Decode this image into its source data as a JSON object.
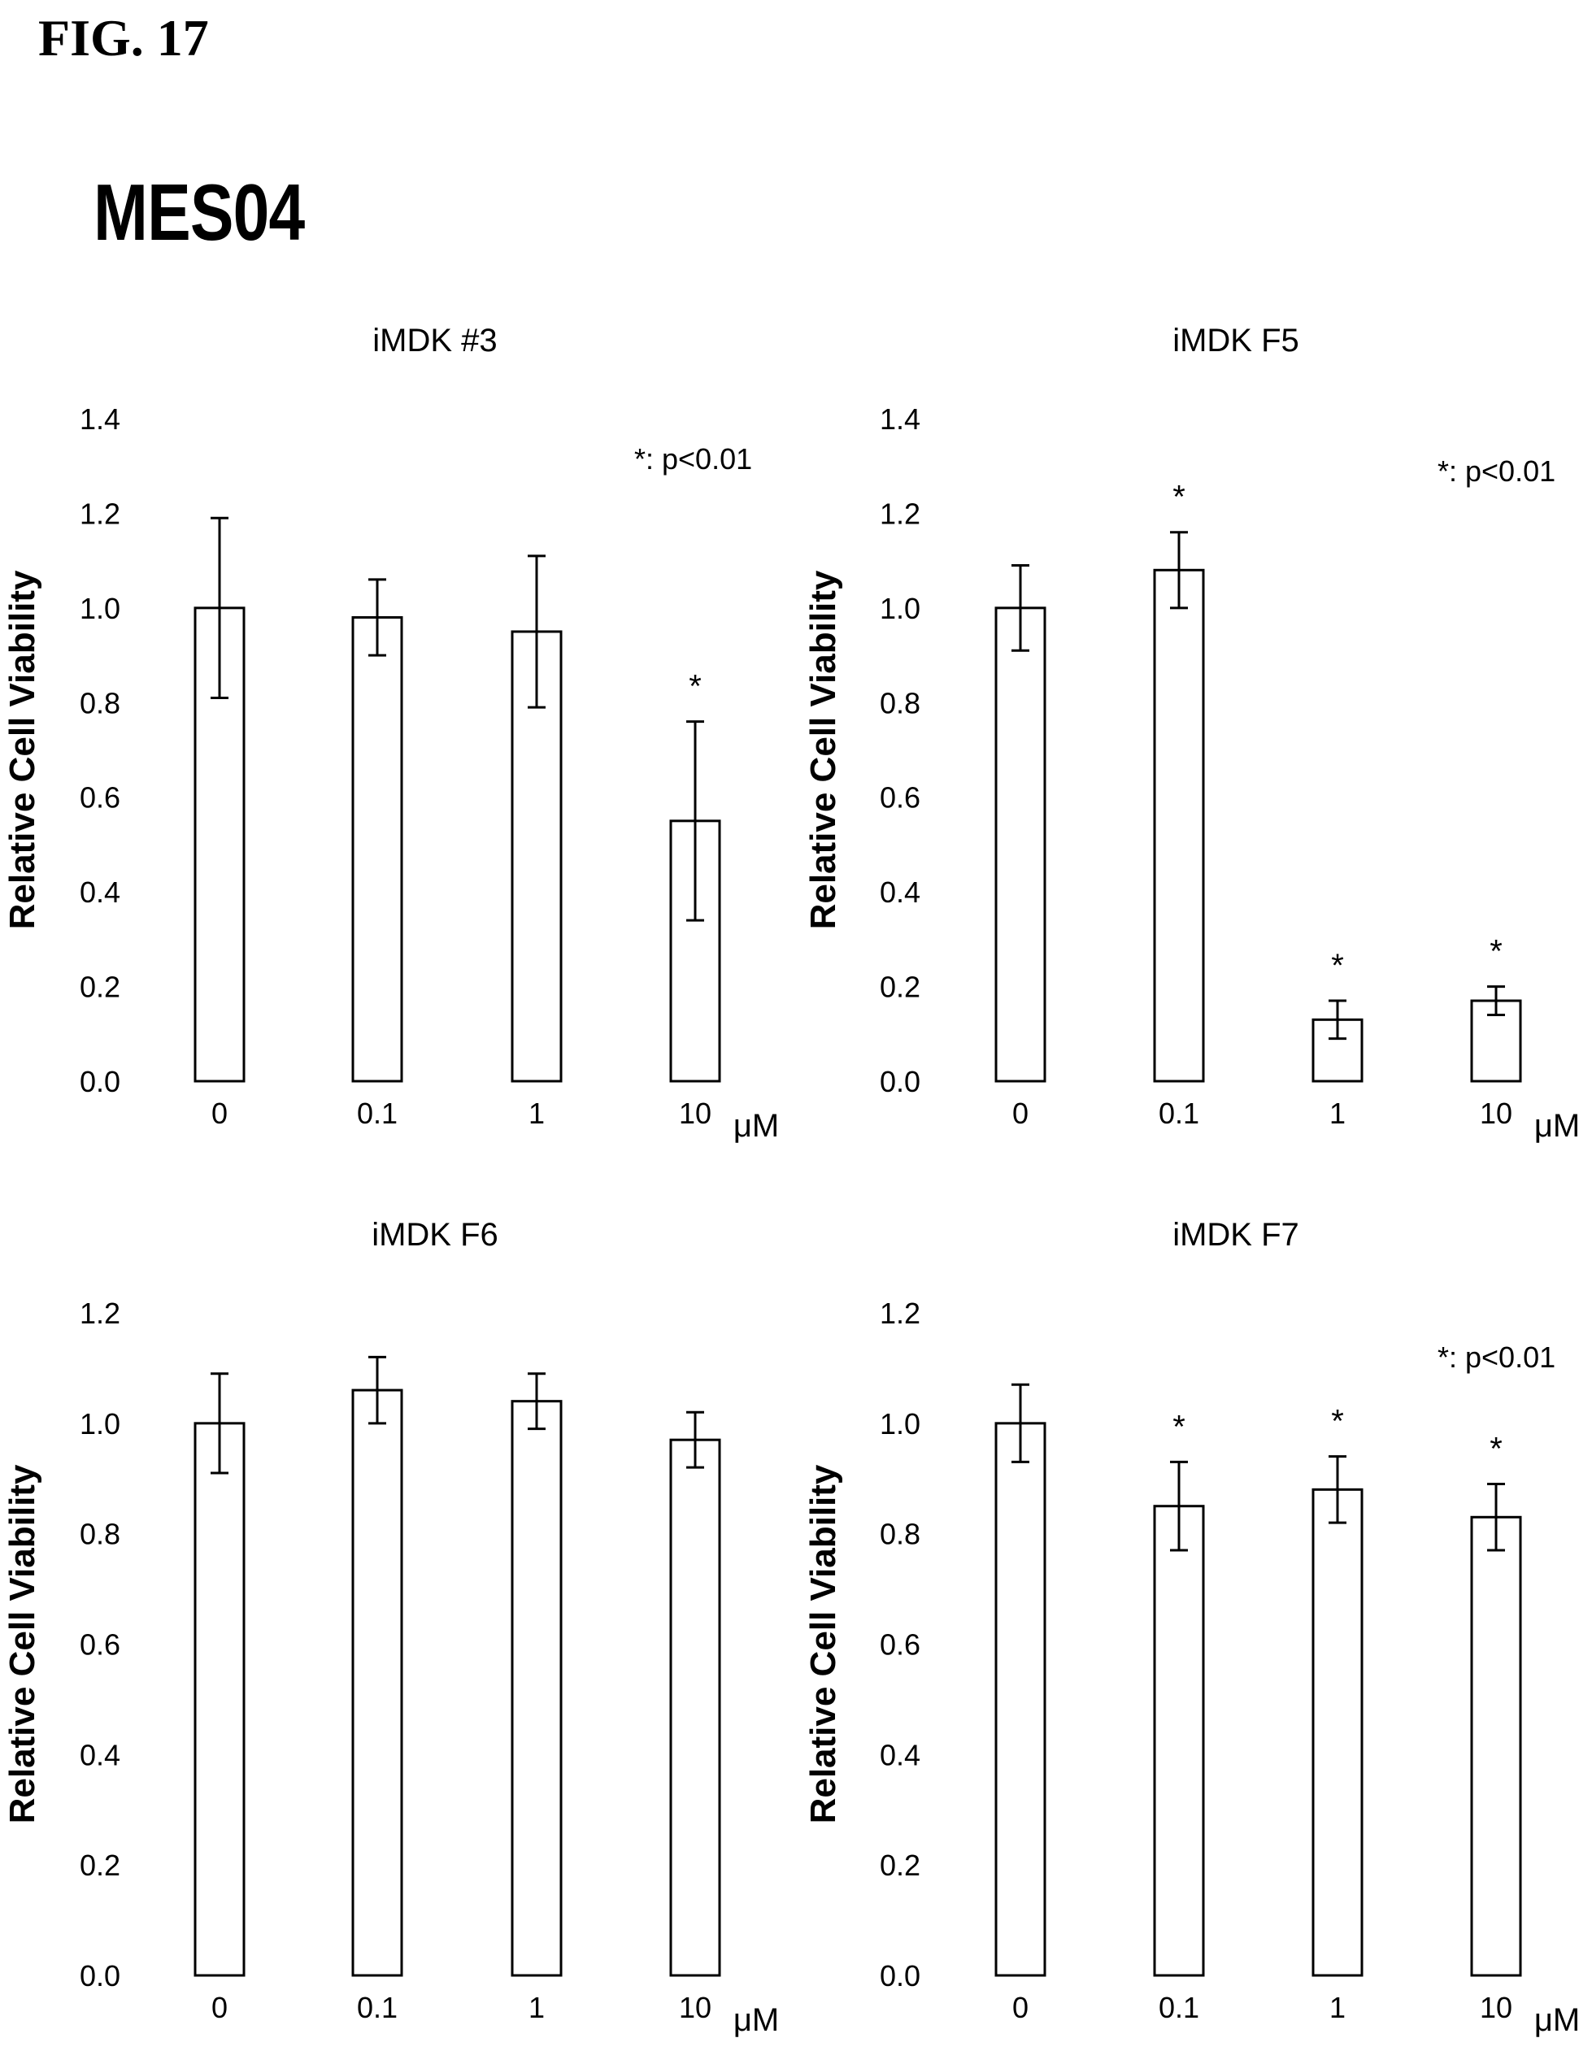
{
  "figure_label": "FIG. 17",
  "main_title": "MES04",
  "chart_data": [
    {
      "type": "bar",
      "title": "iMDK #3",
      "ylabel": "Relative Cell Viability",
      "ylim": [
        0,
        1.4
      ],
      "yticks": [
        "0.0",
        "0.2",
        "0.4",
        "0.6",
        "0.8",
        "1.0",
        "1.2",
        "1.4"
      ],
      "categories": [
        "0",
        "0.1",
        "1",
        "10"
      ],
      "unit": "μM",
      "values": [
        1.0,
        0.98,
        0.95,
        0.55
      ],
      "errors": [
        0.19,
        0.08,
        0.16,
        0.21
      ],
      "significant": [
        false,
        false,
        false,
        true
      ],
      "annotation": "*: p<0.01",
      "star_label": "*"
    },
    {
      "type": "bar",
      "title": "iMDK F5",
      "ylabel": "Relative Cell Viability",
      "ylim": [
        0,
        1.4
      ],
      "yticks": [
        "0.0",
        "0.2",
        "0.4",
        "0.6",
        "0.8",
        "1.0",
        "1.2",
        "1.4"
      ],
      "categories": [
        "0",
        "0.1",
        "1",
        "10"
      ],
      "unit": "μM",
      "values": [
        1.0,
        1.08,
        0.13,
        0.17
      ],
      "errors": [
        0.09,
        0.08,
        0.04,
        0.03
      ],
      "significant": [
        false,
        true,
        true,
        true
      ],
      "annotation": "*: p<0.01",
      "star_label": "*"
    },
    {
      "type": "bar",
      "title": "iMDK F6",
      "ylabel": "Relative Cell Viability",
      "ylim": [
        0,
        1.2
      ],
      "yticks": [
        "0.0",
        "0.2",
        "0.4",
        "0.6",
        "0.8",
        "1.0",
        "1.2"
      ],
      "categories": [
        "0",
        "0.1",
        "1",
        "10"
      ],
      "unit": "μM",
      "values": [
        1.0,
        1.06,
        1.04,
        0.97
      ],
      "errors": [
        0.09,
        0.06,
        0.05,
        0.05
      ],
      "significant": [
        false,
        false,
        false,
        false
      ],
      "annotation": "",
      "star_label": "*"
    },
    {
      "type": "bar",
      "title": "iMDK F7",
      "ylabel": "Relative Cell Viability",
      "ylim": [
        0,
        1.2
      ],
      "yticks": [
        "0.0",
        "0.2",
        "0.4",
        "0.6",
        "0.8",
        "1.0",
        "1.2"
      ],
      "categories": [
        "0",
        "0.1",
        "1",
        "10"
      ],
      "unit": "μM",
      "values": [
        1.0,
        0.85,
        0.88,
        0.83
      ],
      "errors": [
        0.07,
        0.08,
        0.06,
        0.06
      ],
      "significant": [
        false,
        true,
        true,
        true
      ],
      "annotation": "*: p<0.01",
      "star_label": "*"
    }
  ]
}
